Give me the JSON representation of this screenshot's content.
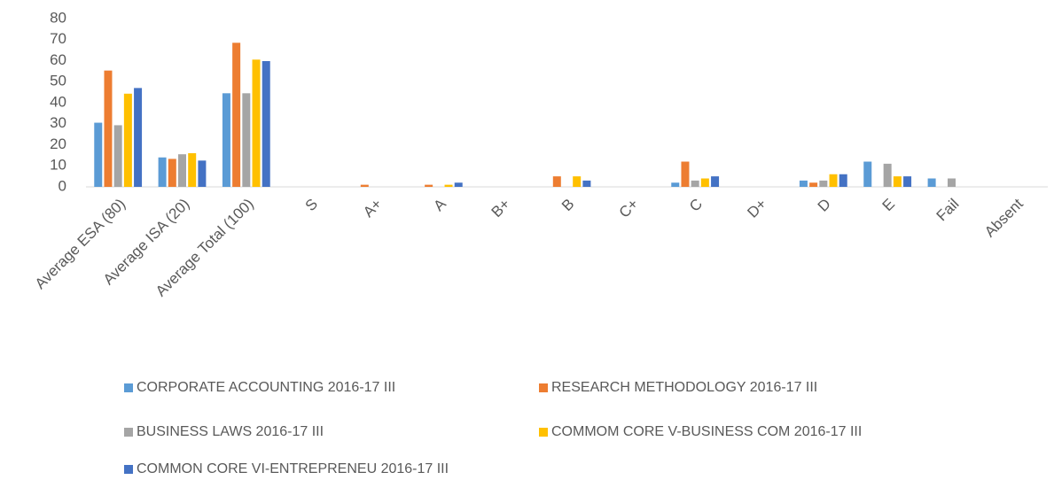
{
  "chart_data": {
    "type": "bar",
    "categories": [
      "Average ESA (80)",
      "Average ISA (20)",
      "Average Total (100)",
      "S",
      "A+",
      "A",
      "B+",
      "B",
      "C+",
      "C",
      "D+",
      "D",
      "E",
      "Fail",
      "Absent"
    ],
    "series": [
      {
        "name": "CORPORATE ACCOUNTING 2016-17 III",
        "color": "#5b9bd5",
        "values": [
          30.5,
          14,
          44.5,
          0,
          0,
          0,
          0,
          0,
          0,
          2,
          0,
          3,
          12,
          4,
          0
        ]
      },
      {
        "name": "RESEARCH METHODOLOGY 2016-17 III",
        "color": "#ed7d31",
        "values": [
          55.3,
          13.3,
          68.5,
          0,
          1,
          1,
          0,
          5,
          0,
          12,
          0,
          2,
          0,
          0,
          0
        ]
      },
      {
        "name": "BUSINESS LAWS 2016-17 III",
        "color": "#a5a5a5",
        "values": [
          29.3,
          15.5,
          44.5,
          0,
          0,
          0,
          0,
          0,
          0,
          3,
          0,
          3,
          11,
          4,
          0
        ]
      },
      {
        "name": "COMMOM CORE V-BUSINESS COM 2016-17 III",
        "color": "#ffc000",
        "values": [
          44.3,
          16,
          60.5,
          0,
          0,
          1,
          0,
          5,
          0,
          4,
          0,
          6,
          5,
          0,
          0
        ]
      },
      {
        "name": "COMMON CORE VI-ENTREPRENEU 2016-17 III",
        "color": "#4472c4",
        "values": [
          47,
          12.5,
          59.8,
          0,
          0,
          2,
          0,
          3,
          0,
          5,
          0,
          6,
          5,
          0,
          0
        ]
      }
    ],
    "ylim": [
      0,
      80
    ],
    "yticks": [
      0,
      10,
      20,
      30,
      40,
      50,
      60,
      70,
      80
    ],
    "grid": false,
    "legend": "bottom"
  }
}
